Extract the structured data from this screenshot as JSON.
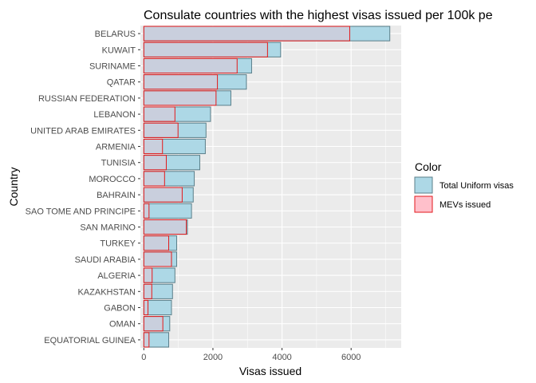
{
  "chart_data": {
    "type": "bar",
    "orientation": "horizontal",
    "title": "Consulate countries with the highest visas issued per 100k pe",
    "xlabel": "Visas issued",
    "ylabel": "Country",
    "xlim": [
      -100,
      7450
    ],
    "x_ticks": [
      0,
      2000,
      4000,
      6000
    ],
    "grid": true,
    "categories": [
      "BELARUS",
      "KUWAIT",
      "SURINAME",
      "QATAR",
      "RUSSIAN FEDERATION",
      "LEBANON",
      "UNITED ARAB EMIRATES",
      "ARMENIA",
      "TUNISIA",
      "MOROCCO",
      "BAHRAIN",
      "SAO TOME AND PRINCIPE",
      "SAN MARINO",
      "TURKEY",
      "SAUDI ARABIA",
      "ALGERIA",
      "KAZAKHSTAN",
      "GABON",
      "OMAN",
      "EQUATORIAL GUINEA"
    ],
    "series": [
      {
        "name": "Total Uniform visas",
        "fill": "#add8e6",
        "stroke": "#5b7f8a",
        "values": [
          7120,
          3960,
          3120,
          2970,
          2520,
          1930,
          1800,
          1780,
          1620,
          1460,
          1430,
          1380,
          1260,
          950,
          950,
          900,
          830,
          800,
          750,
          720
        ]
      },
      {
        "name": "MEVs issued",
        "fill": "#ffc0cb",
        "stroke": "#e31a1c",
        "values": [
          5960,
          3580,
          2700,
          2130,
          2090,
          900,
          990,
          540,
          650,
          600,
          1110,
          150,
          1230,
          720,
          800,
          240,
          230,
          120,
          550,
          150
        ]
      }
    ],
    "legend": {
      "title": "Color",
      "position": "right"
    }
  }
}
